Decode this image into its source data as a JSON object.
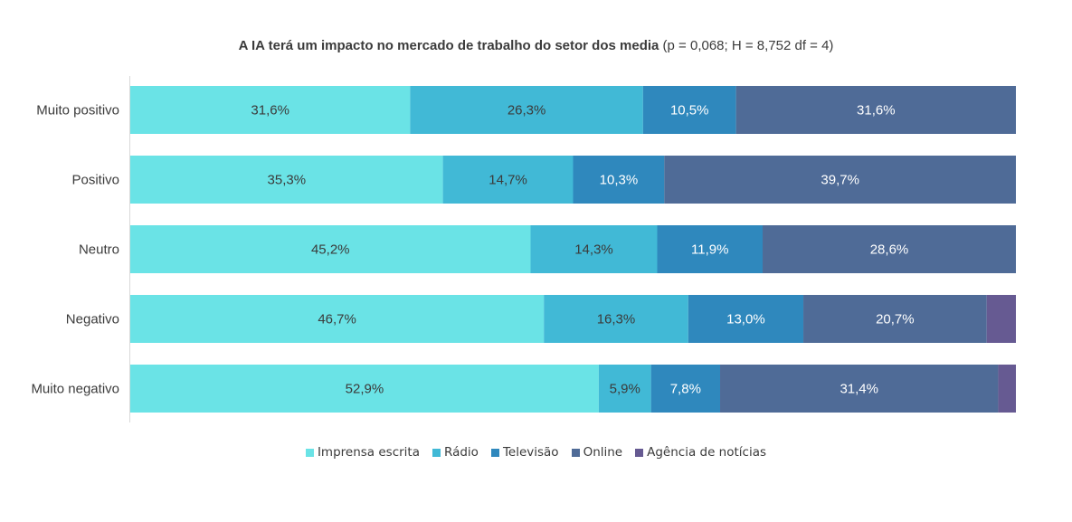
{
  "chart_data": {
    "type": "bar",
    "orientation": "horizontal",
    "stacked": "percent",
    "title_bold": "A IA terá um impacto no mercado de trabalho do setor dos media",
    "title_normal": "(p = 0,068; H = 8,752 df = 4)",
    "categories": [
      "Muito positivo",
      "Positivo",
      "Neutro",
      "Negativo",
      "Muito negativo"
    ],
    "series": [
      {
        "name": "Imprensa escrita",
        "color": "#6ae3e6",
        "label_color": "#3b3b3b",
        "values": [
          31.6,
          35.3,
          45.2,
          46.7,
          52.9
        ],
        "labels": [
          "31,6%",
          "35,3%",
          "45,2%",
          "46,7%",
          "52,9%"
        ]
      },
      {
        "name": "Rádio",
        "color": "#41b9d6",
        "label_color": "#3b3b3b",
        "values": [
          26.3,
          14.7,
          14.3,
          16.3,
          5.9
        ],
        "labels": [
          "26,3%",
          "14,7%",
          "14,3%",
          "16,3%",
          "5,9%"
        ]
      },
      {
        "name": "Televisão",
        "color": "#2f88bd",
        "label_color": "#ffffff",
        "values": [
          10.5,
          10.3,
          11.9,
          13.0,
          7.8
        ],
        "labels": [
          "10,5%",
          "10,3%",
          "11,9%",
          "13,0%",
          "7,8%"
        ]
      },
      {
        "name": "Online",
        "color": "#4f6b97",
        "label_color": "#ffffff",
        "values": [
          31.6,
          39.7,
          28.6,
          20.7,
          31.4
        ],
        "labels": [
          "31,6%",
          "39,7%",
          "28,6%",
          "20,7%",
          "31,4%"
        ]
      },
      {
        "name": "Agência de notícias",
        "color": "#665a92",
        "label_color": "#ffffff",
        "values": [
          0,
          0,
          0,
          3.3,
          2.0
        ],
        "labels": [
          "",
          "",
          "",
          "",
          ""
        ]
      }
    ],
    "xlim": [
      0,
      100
    ],
    "grid": false,
    "legend_position": "bottom"
  }
}
